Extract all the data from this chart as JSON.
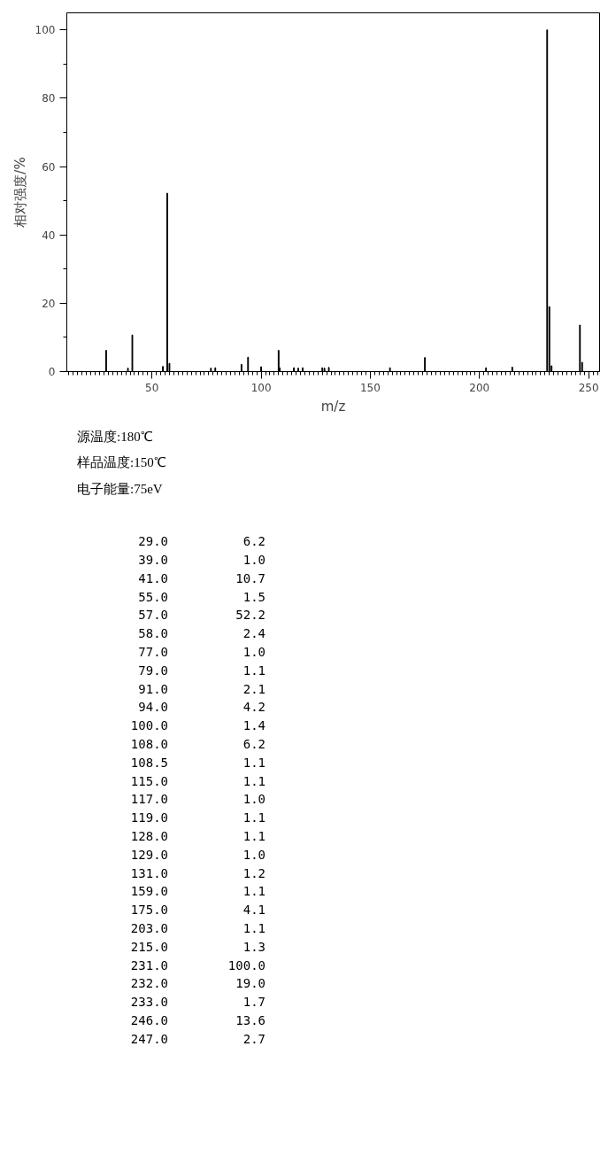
{
  "chart_data": {
    "type": "bar",
    "xlabel": "m/z",
    "ylabel": "相对强度/%",
    "x": [
      29.0,
      39.0,
      41.0,
      55.0,
      57.0,
      58.0,
      77.0,
      79.0,
      91.0,
      94.0,
      100.0,
      108.0,
      108.5,
      115.0,
      117.0,
      119.0,
      128.0,
      129.0,
      131.0,
      159.0,
      175.0,
      203.0,
      215.0,
      231.0,
      232.0,
      233.0,
      246.0,
      247.0
    ],
    "values": [
      6.2,
      1.0,
      10.7,
      1.5,
      52.2,
      2.4,
      1.0,
      1.1,
      2.1,
      4.2,
      1.4,
      6.2,
      1.1,
      1.1,
      1.0,
      1.1,
      1.1,
      1.0,
      1.2,
      1.1,
      4.1,
      1.1,
      1.3,
      100.0,
      19.0,
      1.7,
      13.6,
      2.7
    ],
    "color": "#000000",
    "xlim": [
      11,
      255
    ],
    "xticks": [
      50,
      100,
      150,
      200,
      250
    ],
    "ylim": [
      0,
      105
    ],
    "yticks": [
      0,
      20,
      40,
      60,
      80,
      100
    ],
    "grid": false,
    "annotations": [
      "源温度:180℃",
      "样品温度:150℃",
      "电子能量:75eV",
      "29.0",
      "6.2",
      "39.0",
      "1.0",
      "41.0",
      "10.7",
      "55.0",
      "1.5",
      "57.0",
      "52.2",
      "58.0",
      "2.4",
      "77.0",
      "1.0",
      "79.0",
      "1.1",
      "91.0",
      "2.1",
      "94.0",
      "4.2",
      "100.0",
      "1.4",
      "108.0",
      "6.2",
      "108.5",
      "1.1",
      "115.0",
      "1.1",
      "117.0",
      "1.0",
      "119.0",
      "1.1",
      "128.0",
      "1.1",
      "129.0",
      "1.0",
      "131.0",
      "1.2",
      "159.0",
      "1.1",
      "175.0",
      "4.1",
      "203.0",
      "1.1",
      "215.0",
      "1.3",
      "231.0",
      "100.0",
      "232.0",
      "19.0",
      "233.0",
      "1.7",
      "246.0",
      "13.6",
      "247.0",
      "2.7"
    ]
  }
}
